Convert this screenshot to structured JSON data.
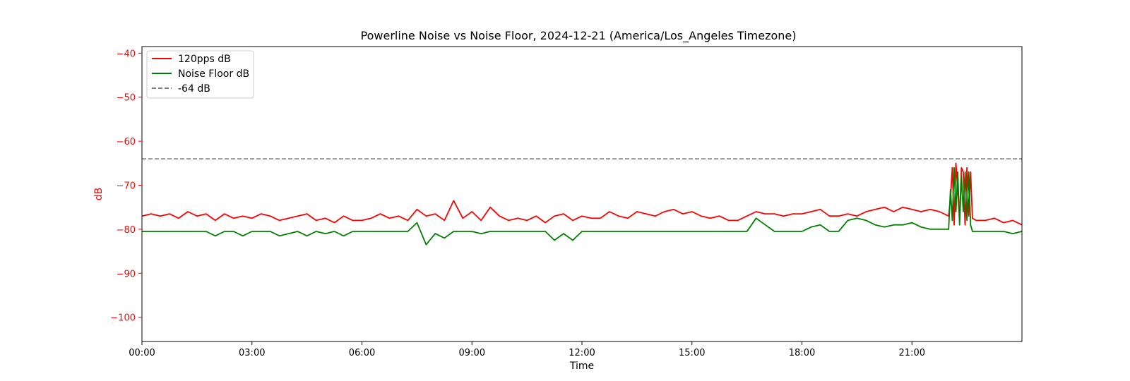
{
  "chart_data": {
    "type": "line",
    "title": "Powerline Noise vs Noise Floor, 2024-12-21 (America/Los_Angeles Timezone)",
    "xlabel": "Time",
    "ylabel": "dB",
    "xlim": [
      0,
      24
    ],
    "ylim": [
      -105.5,
      -38.5
    ],
    "x_unit": "hours",
    "x_ticks": [
      0,
      3,
      6,
      9,
      12,
      15,
      18,
      21
    ],
    "x_tick_labels": [
      "00:00",
      "03:00",
      "06:00",
      "09:00",
      "12:00",
      "15:00",
      "18:00",
      "21:00"
    ],
    "y_ticks": [
      -40,
      -50,
      -60,
      -70,
      -80,
      -90,
      -100
    ],
    "y_tick_labels": [
      "−40",
      "−50",
      "−60",
      "−70",
      "−80",
      "−90",
      "−100"
    ],
    "grid": false,
    "legend_position": "top-left",
    "y_axis_color": "#ff0000",
    "series": [
      {
        "name": "120pps dB",
        "color": "#ff0000",
        "style": "solid",
        "x": [
          0,
          0.25,
          0.5,
          0.75,
          1,
          1.25,
          1.5,
          1.75,
          2,
          2.25,
          2.5,
          2.75,
          3,
          3.25,
          3.5,
          3.75,
          4,
          4.25,
          4.5,
          4.75,
          5,
          5.25,
          5.5,
          5.75,
          6,
          6.25,
          6.5,
          6.75,
          7,
          7.25,
          7.5,
          7.75,
          8,
          8.25,
          8.5,
          8.75,
          9,
          9.25,
          9.5,
          9.75,
          10,
          10.25,
          10.5,
          10.75,
          11,
          11.25,
          11.5,
          11.75,
          12,
          12.25,
          12.5,
          12.75,
          13,
          13.25,
          13.5,
          13.75,
          14,
          14.25,
          14.5,
          14.75,
          15,
          15.25,
          15.5,
          15.75,
          16,
          16.25,
          16.5,
          16.75,
          17,
          17.25,
          17.5,
          17.75,
          18,
          18.25,
          18.5,
          18.75,
          19,
          19.25,
          19.5,
          19.75,
          20,
          20.25,
          20.5,
          20.75,
          21,
          21.25,
          21.5,
          21.75,
          22,
          22.05,
          22.1,
          22.15,
          22.2,
          22.25,
          22.3,
          22.35,
          22.4,
          22.45,
          22.5,
          22.55,
          22.6,
          22.65,
          22.75,
          23,
          23.25,
          23.5,
          23.75,
          24
        ],
        "y": [
          -77,
          -76.5,
          -77,
          -76.5,
          -77.5,
          -76,
          -77,
          -76.5,
          -78,
          -76.5,
          -77.5,
          -77,
          -77.5,
          -76.5,
          -77,
          -78,
          -77.5,
          -77,
          -76.5,
          -78,
          -77.5,
          -78.5,
          -77,
          -78,
          -78,
          -77.5,
          -76.5,
          -77.5,
          -77,
          -78,
          -75.5,
          -77,
          -76.5,
          -78,
          -73.5,
          -77.5,
          -76,
          -78,
          -75,
          -77,
          -78,
          -77.5,
          -78,
          -77,
          -78.5,
          -77,
          -76.5,
          -78,
          -77,
          -77.5,
          -77.5,
          -76,
          -77,
          -77.5,
          -76,
          -76.5,
          -77,
          -76,
          -75.5,
          -76.5,
          -76,
          -77,
          -77.5,
          -77,
          -78,
          -78,
          -77,
          -76,
          -76.5,
          -76.5,
          -77,
          -76.5,
          -76.5,
          -76,
          -75.5,
          -77,
          -77,
          -76.5,
          -77,
          -76,
          -75.5,
          -75,
          -76,
          -75,
          -75.5,
          -76,
          -75.5,
          -76,
          -77,
          -73,
          -66,
          -79,
          -65,
          -71,
          -78,
          -66,
          -67,
          -79,
          -66,
          -77,
          -67,
          -77.5,
          -78,
          -78,
          -77.5,
          -78.5,
          -78,
          -79
        ],
        "label_position": "legend"
      },
      {
        "name": "Noise Floor dB",
        "color": "#008000",
        "style": "solid",
        "x": [
          0,
          0.25,
          0.5,
          0.75,
          1,
          1.25,
          1.5,
          1.75,
          2,
          2.25,
          2.5,
          2.75,
          3,
          3.25,
          3.5,
          3.75,
          4,
          4.25,
          4.5,
          4.75,
          5,
          5.25,
          5.5,
          5.75,
          6,
          6.25,
          6.5,
          6.75,
          7,
          7.25,
          7.5,
          7.75,
          8,
          8.25,
          8.5,
          8.75,
          9,
          9.25,
          9.5,
          9.75,
          10,
          10.25,
          10.5,
          10.75,
          11,
          11.25,
          11.5,
          11.75,
          12,
          12.25,
          12.5,
          12.75,
          13,
          13.25,
          13.5,
          13.75,
          14,
          14.25,
          14.5,
          14.75,
          15,
          15.25,
          15.5,
          15.75,
          16,
          16.25,
          16.5,
          16.75,
          17,
          17.25,
          17.5,
          17.75,
          18,
          18.25,
          18.5,
          18.75,
          19,
          19.25,
          19.5,
          19.75,
          20,
          20.25,
          20.5,
          20.75,
          21,
          21.25,
          21.5,
          21.75,
          22,
          22.05,
          22.1,
          22.15,
          22.2,
          22.25,
          22.3,
          22.35,
          22.4,
          22.45,
          22.5,
          22.55,
          22.6,
          22.65,
          22.75,
          23,
          23.25,
          23.5,
          23.75,
          24
        ],
        "y": [
          -80.5,
          -80.5,
          -80.5,
          -80.5,
          -80.5,
          -80.5,
          -80.5,
          -80.5,
          -81.5,
          -80.5,
          -80.5,
          -81.5,
          -80.5,
          -80.5,
          -80.5,
          -81.5,
          -81,
          -80.5,
          -81.5,
          -80.5,
          -81,
          -80.5,
          -81.5,
          -80.5,
          -80.5,
          -80.5,
          -80.5,
          -80.5,
          -80.5,
          -80.5,
          -78.5,
          -83.5,
          -81,
          -82,
          -80.5,
          -80.5,
          -80.5,
          -81,
          -80.5,
          -80.5,
          -80.5,
          -80.5,
          -80.5,
          -80.5,
          -80.5,
          -82.5,
          -81,
          -82.5,
          -80.5,
          -80.5,
          -80.5,
          -80.5,
          -80.5,
          -80.5,
          -80.5,
          -80.5,
          -80.5,
          -80.5,
          -80.5,
          -80.5,
          -80.5,
          -80.5,
          -80.5,
          -80.5,
          -80.5,
          -80.5,
          -80.5,
          -77.5,
          -79,
          -80.5,
          -80.5,
          -80.5,
          -80.5,
          -79.5,
          -79,
          -80.5,
          -80.5,
          -78,
          -77.5,
          -78,
          -79,
          -79.5,
          -79,
          -79,
          -78.5,
          -79.5,
          -80,
          -80,
          -80,
          -71,
          -78,
          -66,
          -76,
          -67,
          -79,
          -68,
          -76,
          -67,
          -78,
          -67,
          -79,
          -80.5,
          -80.5,
          -80.5,
          -80.5,
          -80.5,
          -81,
          -80.5
        ],
        "label_position": "legend"
      },
      {
        "name": "-64 dB",
        "color": "#808080",
        "style": "dashed",
        "x": [
          0,
          24
        ],
        "y": [
          -64,
          -64
        ],
        "label_position": "legend"
      }
    ]
  }
}
